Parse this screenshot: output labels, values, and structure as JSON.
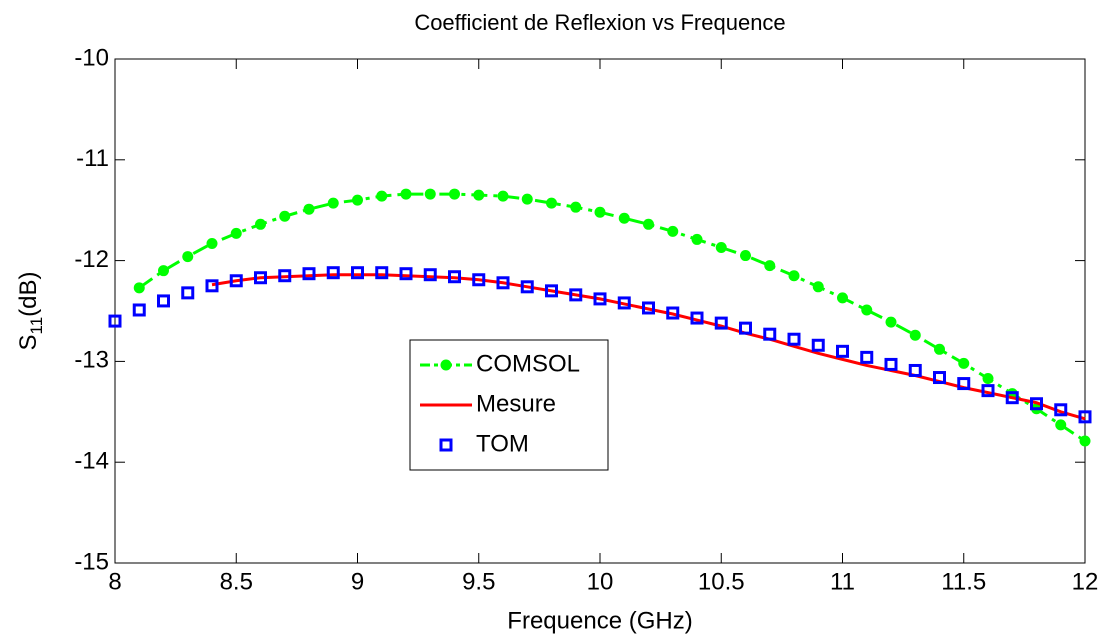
{
  "chart_data": {
    "type": "line",
    "title": "Coefficient de Reflexion vs Frequence",
    "x_label": "Frequence (GHz)",
    "y_label": [
      "S",
      "11",
      "(dB)"
    ],
    "xlim": [
      8,
      12
    ],
    "ylim": [
      -15,
      -10
    ],
    "xticks": [
      8,
      8.5,
      9,
      9.5,
      10,
      10.5,
      11,
      11.5,
      12
    ],
    "yticks": [
      -10,
      -11,
      -12,
      -13,
      -14,
      -15
    ],
    "grid": false,
    "series": [
      {
        "name": "COMSOL",
        "color": "#00ff00",
        "linestyle": "dashdot",
        "marker": "circle",
        "x": [
          8.1,
          8.2,
          8.3,
          8.4,
          8.5,
          8.6,
          8.7,
          8.8,
          8.9,
          9.0,
          9.1,
          9.2,
          9.3,
          9.4,
          9.5,
          9.6,
          9.7,
          9.8,
          9.9,
          10.0,
          10.1,
          10.2,
          10.3,
          10.4,
          10.5,
          10.6,
          10.7,
          10.8,
          10.9,
          11.0,
          11.1,
          11.2,
          11.3,
          11.4,
          11.5,
          11.6,
          11.7,
          11.8,
          11.9,
          12.0
        ],
        "values": [
          -12.27,
          -12.1,
          -11.96,
          -11.83,
          -11.73,
          -11.64,
          -11.56,
          -11.49,
          -11.43,
          -11.4,
          -11.36,
          -11.34,
          -11.34,
          -11.34,
          -11.35,
          -11.36,
          -11.39,
          -11.43,
          -11.47,
          -11.52,
          -11.58,
          -11.64,
          -11.71,
          -11.79,
          -11.87,
          -11.95,
          -12.05,
          -12.15,
          -12.26,
          -12.37,
          -12.49,
          -12.61,
          -12.74,
          -12.88,
          -13.02,
          -13.17,
          -13.32,
          -13.47,
          -13.63,
          -13.79
        ]
      },
      {
        "name": "Mesure",
        "color": "#ff0000",
        "linestyle": "solid",
        "marker": "none",
        "x": [
          8.4,
          8.5,
          8.6,
          8.7,
          8.8,
          8.9,
          9.0,
          9.1,
          9.2,
          9.3,
          9.4,
          9.5,
          9.6,
          9.7,
          9.8,
          9.9,
          10.0,
          10.1,
          10.2,
          10.3,
          10.4,
          10.5,
          10.6,
          10.7,
          10.8,
          10.9,
          11.0,
          11.1,
          11.2,
          11.3,
          11.4,
          11.5,
          11.6,
          11.7,
          11.8,
          11.9,
          12.0
        ],
        "values": [
          -12.24,
          -12.2,
          -12.17,
          -12.16,
          -12.15,
          -12.14,
          -12.14,
          -12.14,
          -12.15,
          -12.16,
          -12.17,
          -12.19,
          -12.22,
          -12.26,
          -12.3,
          -12.34,
          -12.38,
          -12.43,
          -12.48,
          -12.53,
          -12.59,
          -12.65,
          -12.72,
          -12.78,
          -12.85,
          -12.92,
          -12.98,
          -13.04,
          -13.09,
          -13.14,
          -13.2,
          -13.26,
          -13.31,
          -13.36,
          -13.41,
          -13.5,
          -13.57
        ]
      },
      {
        "name": "TOM",
        "color": "#0000ff",
        "linestyle": "none",
        "marker": "square",
        "x": [
          8.0,
          8.1,
          8.2,
          8.3,
          8.4,
          8.5,
          8.6,
          8.7,
          8.8,
          8.9,
          9.0,
          9.1,
          9.2,
          9.3,
          9.4,
          9.5,
          9.6,
          9.7,
          9.8,
          9.9,
          10.0,
          10.1,
          10.2,
          10.3,
          10.4,
          10.5,
          10.6,
          10.7,
          10.8,
          10.9,
          11.0,
          11.1,
          11.2,
          11.3,
          11.4,
          11.5,
          11.6,
          11.7,
          11.8,
          11.9,
          12.0
        ],
        "values": [
          -12.6,
          -12.49,
          -12.4,
          -12.32,
          -12.25,
          -12.2,
          -12.17,
          -12.15,
          -12.13,
          -12.12,
          -12.12,
          -12.12,
          -12.13,
          -12.14,
          -12.16,
          -12.19,
          -12.22,
          -12.26,
          -12.3,
          -12.34,
          -12.38,
          -12.42,
          -12.47,
          -12.52,
          -12.57,
          -12.62,
          -12.67,
          -12.73,
          -12.78,
          -12.84,
          -12.9,
          -12.96,
          -13.03,
          -13.09,
          -13.16,
          -13.22,
          -13.29,
          -13.36,
          -13.42,
          -13.48,
          -13.55
        ]
      }
    ]
  }
}
